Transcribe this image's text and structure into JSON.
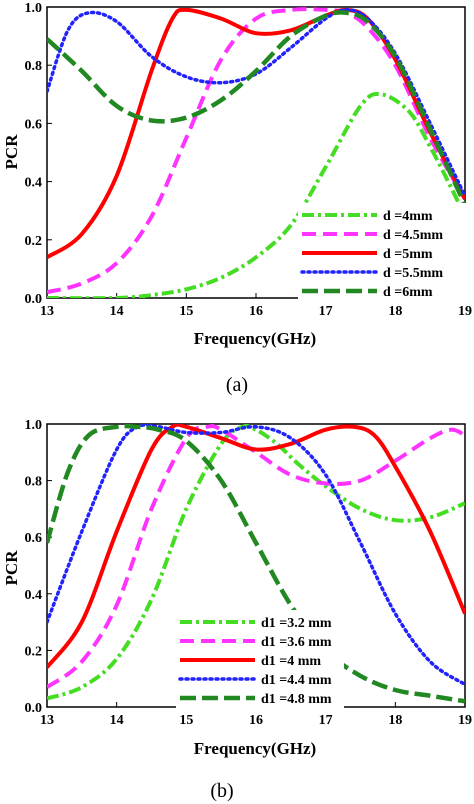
{
  "chart_data": [
    {
      "type": "line",
      "caption": "(a)",
      "xlabel": "Frequency(GHz)",
      "ylabel": "PCR",
      "xlim": [
        13,
        19
      ],
      "ylim": [
        0,
        1
      ],
      "xticks": [
        "13",
        "14",
        "15",
        "16",
        "17",
        "18",
        "19"
      ],
      "yticks": [
        "0.0",
        "0.2",
        "0.4",
        "0.6",
        "0.8",
        "1.0"
      ],
      "legend_position": "bottom-right",
      "series": [
        {
          "name": "d =4mm",
          "color": "#44dd22",
          "style": "dashdot",
          "x": [
            13,
            14,
            14.5,
            15,
            15.5,
            16,
            16.5,
            17,
            17.5,
            17.8,
            18.2,
            18.5,
            18.8,
            19
          ],
          "y": [
            0.0,
            0.0,
            0.01,
            0.03,
            0.07,
            0.14,
            0.25,
            0.45,
            0.66,
            0.7,
            0.64,
            0.52,
            0.38,
            0.28
          ]
        },
        {
          "name": "d =4.5mm",
          "color": "#ff33ff",
          "style": "dash",
          "x": [
            13,
            13.5,
            14,
            14.5,
            15,
            15.5,
            16,
            16.5,
            17,
            17.3,
            17.6,
            18,
            18.5,
            19
          ],
          "y": [
            0.02,
            0.05,
            0.12,
            0.28,
            0.55,
            0.82,
            0.96,
            0.99,
            0.99,
            0.98,
            0.93,
            0.8,
            0.55,
            0.34
          ]
        },
        {
          "name": "d =5mm",
          "color": "#ff0000",
          "style": "solid",
          "x": [
            13,
            13.5,
            14,
            14.5,
            14.8,
            15,
            15.5,
            16,
            16.5,
            17,
            17.3,
            17.6,
            18,
            18.5,
            19
          ],
          "y": [
            0.14,
            0.22,
            0.42,
            0.78,
            0.96,
            0.99,
            0.96,
            0.91,
            0.92,
            0.97,
            0.99,
            0.96,
            0.82,
            0.57,
            0.34
          ]
        },
        {
          "name": "d =5.5mm",
          "color": "#2222ff",
          "style": "dot",
          "x": [
            13,
            13.3,
            13.6,
            14,
            14.5,
            15,
            15.5,
            16,
            16.5,
            17,
            17.3,
            17.6,
            18,
            18.5,
            19
          ],
          "y": [
            0.71,
            0.92,
            0.98,
            0.95,
            0.83,
            0.76,
            0.74,
            0.77,
            0.86,
            0.96,
            0.99,
            0.96,
            0.84,
            0.6,
            0.35
          ]
        },
        {
          "name": "d =6mm",
          "color": "#228822",
          "style": "longdash",
          "x": [
            13,
            13.5,
            14,
            14.5,
            15,
            15.5,
            16,
            16.5,
            17,
            17.3,
            17.6,
            18,
            18.5,
            19
          ],
          "y": [
            0.89,
            0.78,
            0.66,
            0.61,
            0.62,
            0.68,
            0.78,
            0.9,
            0.97,
            0.98,
            0.95,
            0.83,
            0.58,
            0.32
          ]
        }
      ]
    },
    {
      "type": "line",
      "caption": "(b)",
      "xlabel": "Frequency(GHz)",
      "ylabel": "PCR",
      "xlim": [
        13,
        19
      ],
      "ylim": [
        0,
        1
      ],
      "xticks": [
        "13",
        "14",
        "15",
        "16",
        "17",
        "18",
        "19"
      ],
      "yticks": [
        "0.0",
        "0.2",
        "0.4",
        "0.6",
        "0.8",
        "1.0"
      ],
      "legend_position": "bottom-center",
      "series": [
        {
          "name": "d1 =3.2 mm",
          "color": "#44dd22",
          "style": "dashdot",
          "x": [
            13,
            13.5,
            14,
            14.5,
            15,
            15.5,
            15.8,
            16,
            16.3,
            16.6,
            17,
            17.5,
            18,
            18.5,
            19
          ],
          "y": [
            0.03,
            0.07,
            0.17,
            0.38,
            0.7,
            0.93,
            0.99,
            0.98,
            0.93,
            0.86,
            0.78,
            0.7,
            0.66,
            0.67,
            0.72
          ]
        },
        {
          "name": "d1 =3.6 mm",
          "color": "#ff33ff",
          "style": "dash",
          "x": [
            13,
            13.5,
            14,
            14.5,
            15,
            15.3,
            15.5,
            16,
            16.5,
            17,
            17.5,
            18,
            18.5,
            18.8,
            19
          ],
          "y": [
            0.07,
            0.16,
            0.36,
            0.7,
            0.95,
            0.99,
            0.98,
            0.9,
            0.82,
            0.79,
            0.8,
            0.87,
            0.95,
            0.98,
            0.96
          ]
        },
        {
          "name": "d1 =4 mm",
          "color": "#ff0000",
          "style": "solid",
          "x": [
            13,
            13.5,
            14,
            14.5,
            14.8,
            15,
            15.5,
            16,
            16.5,
            17,
            17.4,
            17.7,
            18,
            18.5,
            19
          ],
          "y": [
            0.14,
            0.3,
            0.62,
            0.91,
            0.99,
            0.99,
            0.95,
            0.91,
            0.93,
            0.98,
            0.99,
            0.96,
            0.85,
            0.62,
            0.33
          ]
        },
        {
          "name": "d1 =4.4 mm",
          "color": "#2222ff",
          "style": "dot",
          "x": [
            13,
            13.5,
            14,
            14.3,
            14.6,
            15,
            15.5,
            16,
            16.5,
            17,
            17.5,
            18,
            18.5,
            19
          ],
          "y": [
            0.3,
            0.62,
            0.91,
            0.99,
            0.99,
            0.97,
            0.97,
            0.99,
            0.95,
            0.82,
            0.58,
            0.33,
            0.16,
            0.08
          ]
        },
        {
          "name": "d1 =4.8 mm",
          "color": "#228822",
          "style": "longdash",
          "x": [
            13,
            13.3,
            13.6,
            14,
            14.3,
            14.6,
            15,
            15.5,
            16,
            16.5,
            17,
            17.5,
            18,
            18.5,
            19
          ],
          "y": [
            0.58,
            0.83,
            0.96,
            0.99,
            0.99,
            0.98,
            0.94,
            0.8,
            0.58,
            0.36,
            0.2,
            0.11,
            0.06,
            0.04,
            0.02
          ]
        }
      ]
    }
  ]
}
